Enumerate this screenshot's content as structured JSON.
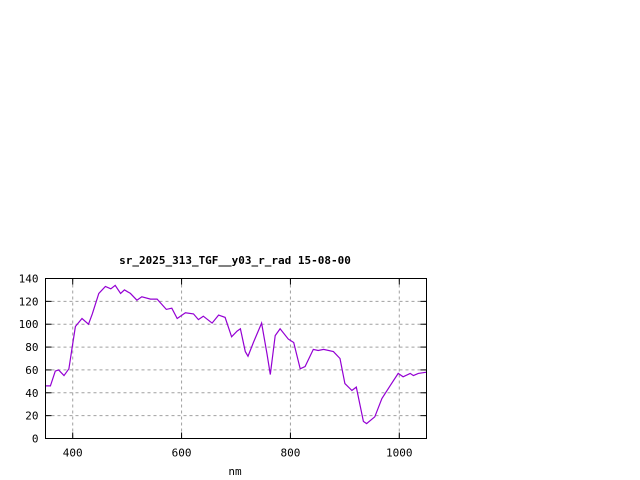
{
  "chart_data": {
    "type": "line",
    "title": "sr_2025_313_TGF__y03_r_rad 15-08-00",
    "xlabel": "nm",
    "ylabel": "",
    "xlim": [
      350,
      1050
    ],
    "ylim": [
      0,
      140
    ],
    "xticks": [
      400,
      600,
      800,
      1000
    ],
    "yticks": [
      0,
      20,
      40,
      60,
      80,
      100,
      120,
      140
    ],
    "grid": true,
    "legend": "none",
    "series_color": "#9400d3",
    "series": [
      {
        "x": [
          350,
          359,
          368,
          374,
          384,
          393,
          399,
          405,
          417,
          429,
          436,
          448,
          460,
          470,
          478,
          488,
          495,
          506,
          518,
          527,
          543,
          555,
          572,
          582,
          592,
          607,
          622,
          631,
          640,
          656,
          668,
          680,
          692,
          702,
          708,
          717,
          722,
          732,
          747,
          757,
          763,
          772,
          781,
          796,
          806,
          818,
          827,
          842,
          851,
          861,
          879,
          891,
          900,
          913,
          921,
          934,
          940,
          955,
          968,
          983,
          998,
          1007,
          1020,
          1026,
          1035,
          1050
        ],
        "y": [
          46,
          46,
          59,
          60,
          55,
          61,
          80,
          98,
          105,
          100,
          109,
          127,
          133,
          131,
          134,
          127,
          130,
          127,
          121,
          124,
          122,
          122,
          113,
          114,
          105,
          110,
          109,
          104,
          107,
          101,
          108,
          106,
          89,
          94,
          96,
          76,
          72,
          84,
          101,
          74,
          56,
          90,
          96,
          87,
          84,
          61,
          63,
          78,
          77,
          78,
          76,
          70,
          48,
          42,
          45,
          15,
          13,
          19,
          35,
          46,
          57,
          54,
          57,
          55,
          57,
          58
        ]
      }
    ]
  }
}
